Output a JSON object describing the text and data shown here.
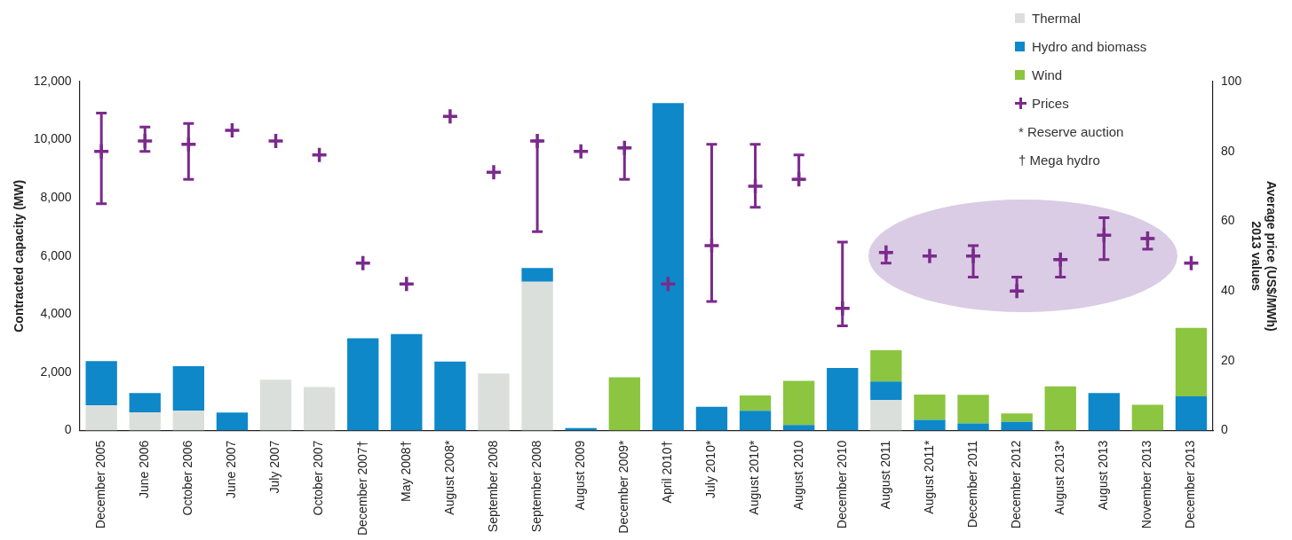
{
  "chart_data": {
    "type": "bar",
    "stacked": true,
    "grid": false,
    "legend": "top right",
    "marker": "cross",
    "ylabel": "Contracted capacity (MW)",
    "y2label": "Average price (US$/MWh)\n2013 values",
    "categories": [
      "December 2005",
      "June 2006",
      "October 2006",
      "June 2007",
      "July 2007",
      "October 2007",
      "December 2007†",
      "May 2008†",
      "August 2008*",
      "September 2008",
      "September 2008",
      "August 2009",
      "December 2009*",
      "April 2010†",
      "July 2010*",
      "August 2010*",
      "August 2010",
      "December 2010",
      "August 2011",
      "August 2011*",
      "December 2011",
      "December 2012",
      "August 2013*",
      "August 2013",
      "November 2013",
      "December 2013"
    ],
    "ylim": [
      0,
      12000
    ],
    "yticks": [
      0,
      {
        "value": 2000,
        "label": "2,000"
      },
      {
        "value": 4000,
        "label": "4,000"
      },
      {
        "value": 6000,
        "label": "6,000"
      },
      {
        "value": 8000,
        "label": "8,000"
      },
      {
        "value": 10000,
        "label": "10,000"
      },
      {
        "value": 12000,
        "label": "12,000"
      }
    ],
    "y2lim": [
      0,
      100
    ],
    "y2ticks": [
      0,
      20,
      40,
      60,
      80,
      100
    ],
    "series": [
      {
        "name": "Thermal",
        "type": "bar",
        "color": "#dbdfdb",
        "values": [
          870,
          620,
          690,
          null,
          1750,
          1500,
          null,
          null,
          null,
          1960,
          5120,
          null,
          null,
          null,
          null,
          null,
          null,
          null,
          1050,
          null,
          null,
          null,
          null,
          null,
          null,
          null
        ]
      },
      {
        "name": "Hydro and biomass",
        "type": "bar",
        "color": "#0e88c9",
        "values": [
          1520,
          670,
          1520,
          620,
          null,
          null,
          3170,
          3320,
          2370,
          null,
          470,
          90,
          null,
          11260,
          820,
          680,
          190,
          2150,
          640,
          370,
          250,
          300,
          null,
          1290,
          null,
          1180
        ]
      },
      {
        "name": "Wind",
        "type": "bar",
        "color": "#8cc540",
        "values": [
          null,
          null,
          null,
          null,
          null,
          null,
          null,
          null,
          null,
          null,
          null,
          null,
          1830,
          null,
          null,
          530,
          1520,
          null,
          1070,
          870,
          980,
          290,
          1520,
          null,
          890,
          2350
        ]
      },
      {
        "name": "Prices",
        "type": "scatter",
        "axis": "y2",
        "color": "#7b2a8c",
        "values": [
          80,
          83,
          82,
          86,
          83,
          79,
          48,
          42,
          90,
          74,
          83,
          80,
          81,
          42,
          53,
          70,
          72,
          35,
          51,
          50,
          50,
          40,
          49,
          56,
          55,
          48
        ],
        "errors": [
          [
            65,
            91
          ],
          [
            80,
            87
          ],
          [
            72,
            88
          ],
          null,
          null,
          null,
          null,
          null,
          null,
          null,
          [
            57,
            83
          ],
          null,
          [
            72,
            81
          ],
          null,
          [
            37,
            82
          ],
          [
            64,
            82
          ],
          [
            72,
            79
          ],
          [
            30,
            54
          ],
          [
            48,
            51
          ],
          null,
          [
            44,
            53
          ],
          [
            40,
            44
          ],
          [
            44,
            49
          ],
          [
            49,
            61
          ],
          [
            52,
            55
          ],
          null
        ]
      }
    ],
    "annotations": [
      "* Reserve auction",
      "† Mega hydro"
    ]
  }
}
